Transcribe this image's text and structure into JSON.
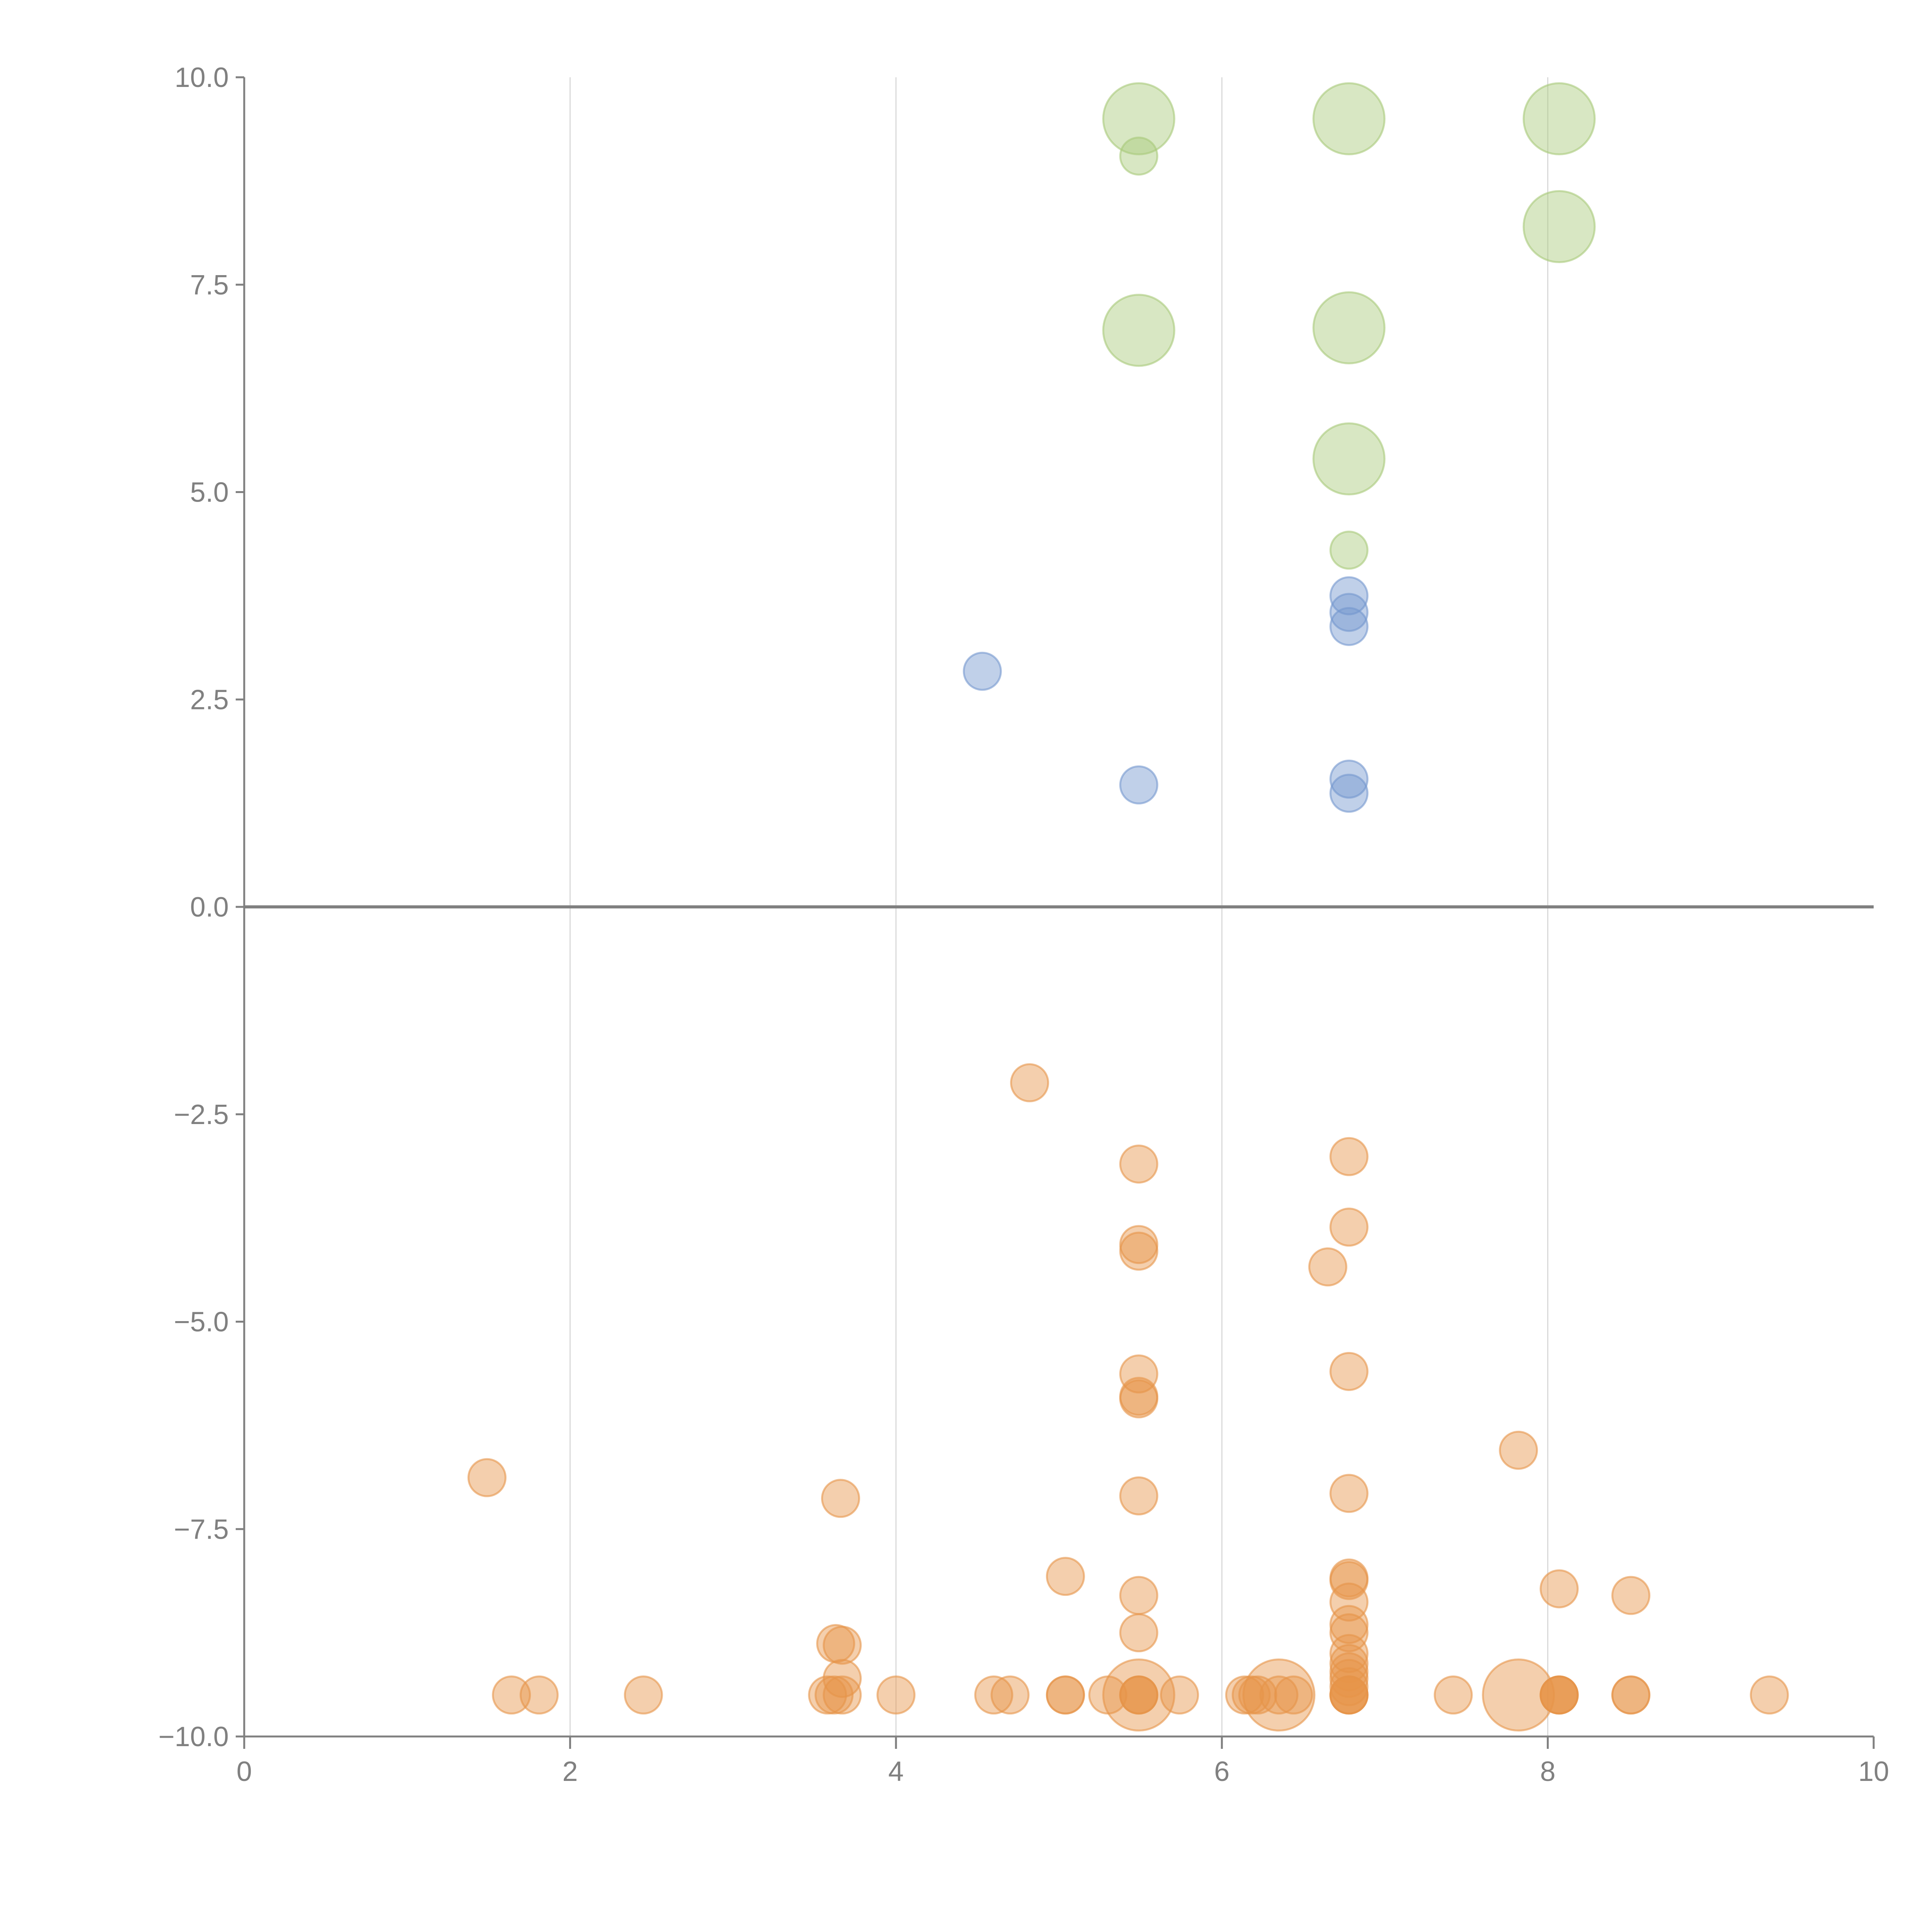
{
  "chart_data": {
    "type": "scatter",
    "title": "",
    "xlabel": "",
    "ylabel": "",
    "xlim": [
      0,
      10
    ],
    "ylim": [
      -10,
      10
    ],
    "x_ticks": [
      "0",
      "2",
      "4",
      "6",
      "8",
      "10"
    ],
    "y_ticks": [
      "10.0",
      "7.5",
      "5.0",
      "2.5",
      "0.0",
      "−2.5",
      "−5.0",
      "−7.5",
      "−10.0"
    ],
    "grid": "vertical",
    "legend": "none",
    "colors": {
      "green": "#a9c97a",
      "blue": "#7497ce",
      "orange": "#e6954a",
      "axis": "#808080",
      "grid": "#d9d9d9"
    },
    "series": [
      {
        "name": "green",
        "color": "#a9c97a",
        "points": [
          {
            "x": 5.49,
            "y": 9.5,
            "size": "large"
          },
          {
            "x": 5.49,
            "y": 9.05,
            "size": "small"
          },
          {
            "x": 6.78,
            "y": 9.5,
            "size": "large"
          },
          {
            "x": 8.07,
            "y": 9.5,
            "size": "large"
          },
          {
            "x": 8.07,
            "y": 8.2,
            "size": "large"
          },
          {
            "x": 5.49,
            "y": 6.95,
            "size": "large"
          },
          {
            "x": 6.78,
            "y": 6.98,
            "size": "large"
          },
          {
            "x": 6.78,
            "y": 5.4,
            "size": "large"
          },
          {
            "x": 6.78,
            "y": 4.3,
            "size": "small"
          }
        ]
      },
      {
        "name": "blue",
        "color": "#7497ce",
        "points": [
          {
            "x": 6.78,
            "y": 3.75,
            "size": "small"
          },
          {
            "x": 6.78,
            "y": 3.55,
            "size": "small"
          },
          {
            "x": 6.78,
            "y": 3.38,
            "size": "small"
          },
          {
            "x": 4.53,
            "y": 2.84,
            "size": "small"
          },
          {
            "x": 5.49,
            "y": 1.47,
            "size": "small"
          },
          {
            "x": 6.78,
            "y": 1.54,
            "size": "small"
          },
          {
            "x": 6.78,
            "y": 1.37,
            "size": "small"
          }
        ]
      },
      {
        "name": "orange",
        "color": "#e6954a",
        "points": [
          {
            "x": 4.82,
            "y": -2.12,
            "size": "small"
          },
          {
            "x": 6.78,
            "y": -3.01,
            "size": "small"
          },
          {
            "x": 5.49,
            "y": -3.1,
            "size": "small"
          },
          {
            "x": 6.78,
            "y": -3.86,
            "size": "small"
          },
          {
            "x": 5.49,
            "y": -4.07,
            "size": "small"
          },
          {
            "x": 5.49,
            "y": -4.15,
            "size": "small"
          },
          {
            "x": 6.65,
            "y": -4.34,
            "size": "small"
          },
          {
            "x": 6.78,
            "y": -5.6,
            "size": "small"
          },
          {
            "x": 5.49,
            "y": -5.63,
            "size": "small"
          },
          {
            "x": 5.49,
            "y": -5.9,
            "size": "small"
          },
          {
            "x": 5.49,
            "y": -5.93,
            "size": "small"
          },
          {
            "x": 7.82,
            "y": -6.55,
            "size": "small"
          },
          {
            "x": 1.49,
            "y": -6.88,
            "size": "small"
          },
          {
            "x": 6.78,
            "y": -7.07,
            "size": "small"
          },
          {
            "x": 5.49,
            "y": -7.1,
            "size": "small"
          },
          {
            "x": 3.66,
            "y": -7.13,
            "size": "small"
          },
          {
            "x": 5.04,
            "y": -8.07,
            "size": "small"
          },
          {
            "x": 6.78,
            "y": -8.09,
            "size": "small"
          },
          {
            "x": 6.78,
            "y": -8.12,
            "size": "small"
          },
          {
            "x": 8.07,
            "y": -8.22,
            "size": "small"
          },
          {
            "x": 8.51,
            "y": -8.3,
            "size": "small"
          },
          {
            "x": 5.49,
            "y": -8.3,
            "size": "small"
          },
          {
            "x": 6.78,
            "y": -8.38,
            "size": "small"
          },
          {
            "x": 6.78,
            "y": -8.65,
            "size": "small"
          },
          {
            "x": 6.78,
            "y": -8.75,
            "size": "small"
          },
          {
            "x": 5.49,
            "y": -8.75,
            "size": "small"
          },
          {
            "x": 3.63,
            "y": -8.88,
            "size": "small"
          },
          {
            "x": 3.67,
            "y": -8.9,
            "size": "small"
          },
          {
            "x": 6.78,
            "y": -9.0,
            "size": "small"
          },
          {
            "x": 6.78,
            "y": -9.12,
            "size": "small"
          },
          {
            "x": 6.78,
            "y": -9.22,
            "size": "small"
          },
          {
            "x": 6.78,
            "y": -9.3,
            "size": "small"
          },
          {
            "x": 3.67,
            "y": -9.3,
            "size": "small"
          },
          {
            "x": 6.78,
            "y": -9.4,
            "size": "small"
          },
          {
            "x": 1.64,
            "y": -9.5,
            "size": "small"
          },
          {
            "x": 1.81,
            "y": -9.5,
            "size": "small"
          },
          {
            "x": 2.45,
            "y": -9.5,
            "size": "small"
          },
          {
            "x": 3.58,
            "y": -9.5,
            "size": "small"
          },
          {
            "x": 3.62,
            "y": -9.5,
            "size": "small"
          },
          {
            "x": 3.67,
            "y": -9.5,
            "size": "small"
          },
          {
            "x": 4.0,
            "y": -9.5,
            "size": "small"
          },
          {
            "x": 4.6,
            "y": -9.5,
            "size": "small"
          },
          {
            "x": 4.7,
            "y": -9.5,
            "size": "small"
          },
          {
            "x": 5.04,
            "y": -9.5,
            "size": "small"
          },
          {
            "x": 5.04,
            "y": -9.5,
            "size": "small"
          },
          {
            "x": 5.3,
            "y": -9.5,
            "size": "small"
          },
          {
            "x": 5.49,
            "y": -9.5,
            "size": "large"
          },
          {
            "x": 5.49,
            "y": -9.5,
            "size": "small"
          },
          {
            "x": 5.49,
            "y": -9.5,
            "size": "small"
          },
          {
            "x": 5.49,
            "y": -9.5,
            "size": "small"
          },
          {
            "x": 5.74,
            "y": -9.5,
            "size": "small"
          },
          {
            "x": 6.14,
            "y": -9.5,
            "size": "small"
          },
          {
            "x": 6.18,
            "y": -9.5,
            "size": "small"
          },
          {
            "x": 6.22,
            "y": -9.5,
            "size": "small"
          },
          {
            "x": 6.35,
            "y": -9.5,
            "size": "large"
          },
          {
            "x": 6.35,
            "y": -9.5,
            "size": "small"
          },
          {
            "x": 6.44,
            "y": -9.5,
            "size": "small"
          },
          {
            "x": 6.78,
            "y": -9.5,
            "size": "small"
          },
          {
            "x": 6.78,
            "y": -9.5,
            "size": "small"
          },
          {
            "x": 6.78,
            "y": -9.5,
            "size": "small"
          },
          {
            "x": 6.78,
            "y": -9.5,
            "size": "small"
          },
          {
            "x": 7.42,
            "y": -9.5,
            "size": "small"
          },
          {
            "x": 7.82,
            "y": -9.5,
            "size": "large"
          },
          {
            "x": 8.07,
            "y": -9.5,
            "size": "small"
          },
          {
            "x": 8.07,
            "y": -9.5,
            "size": "small"
          },
          {
            "x": 8.07,
            "y": -9.5,
            "size": "small"
          },
          {
            "x": 8.07,
            "y": -9.5,
            "size": "small"
          },
          {
            "x": 8.51,
            "y": -9.5,
            "size": "small"
          },
          {
            "x": 8.51,
            "y": -9.5,
            "size": "small"
          },
          {
            "x": 9.36,
            "y": -9.5,
            "size": "small"
          }
        ]
      }
    ],
    "annotations": []
  }
}
